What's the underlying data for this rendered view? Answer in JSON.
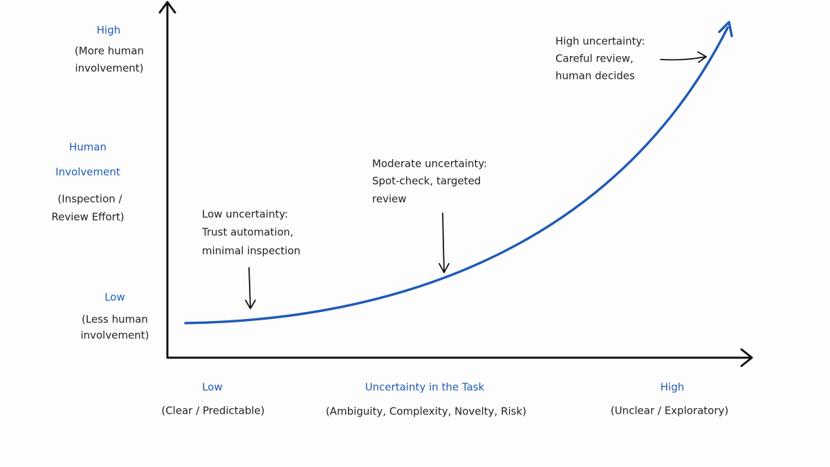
{
  "y_axis": {
    "high": {
      "label": "High",
      "note": [
        "(More human",
        "involvement)"
      ]
    },
    "title": [
      "Human",
      "Involvement"
    ],
    "subtitle": [
      "(Inspection /",
      "Review Effort)"
    ],
    "low": {
      "label": "Low",
      "note": [
        "(Less human",
        "involvement)"
      ]
    }
  },
  "x_axis": {
    "low": {
      "label": "Low",
      "note": "(Clear / Predictable)"
    },
    "title": "Uncertainty in the Task",
    "subtitle": "(Ambiguity, Complexity, Novelty, Risk)",
    "high": {
      "label": "High",
      "note": "(Unclear / Exploratory)"
    }
  },
  "annotations": [
    {
      "lines": [
        "Low uncertainty:",
        "Trust automation,",
        "minimal inspection"
      ]
    },
    {
      "lines": [
        "Moderate uncertainty:",
        "Spot-check, targeted",
        "review"
      ]
    },
    {
      "lines": [
        "High uncertainty:",
        "Careful review,",
        "human decides"
      ]
    }
  ]
}
